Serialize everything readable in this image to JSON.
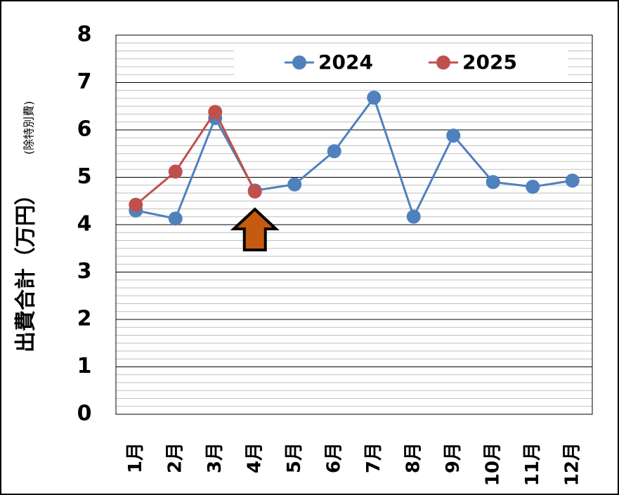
{
  "chart_data": {
    "type": "line",
    "y_label": "出費合計（万円）",
    "y_sublabel": "(除特別費)",
    "categories": [
      "1月",
      "2月",
      "3月",
      "4月",
      "5月",
      "6月",
      "7月",
      "8月",
      "9月",
      "10月",
      "11月",
      "12月"
    ],
    "series": [
      {
        "name": "2024",
        "color": "#4f81bd",
        "values": [
          4.3,
          4.13,
          6.25,
          4.72,
          4.85,
          5.55,
          6.68,
          4.17,
          5.88,
          4.9,
          4.8,
          4.93
        ]
      },
      {
        "name": "2025",
        "color": "#c0504d",
        "values": [
          4.42,
          5.12,
          6.38,
          4.7,
          null,
          null,
          null,
          null,
          null,
          null,
          null,
          null
        ]
      }
    ],
    "ylim": [
      0,
      8
    ],
    "yticks": [
      0,
      1,
      2,
      3,
      4,
      5,
      6,
      7,
      8
    ],
    "grid": true,
    "minor_grid": 6,
    "legend": "top"
  }
}
